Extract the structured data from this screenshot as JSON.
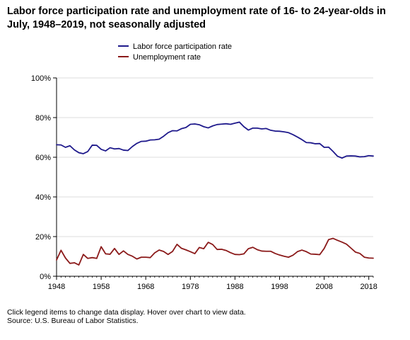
{
  "title": "Labor force participation rate and unemployment rate of 16- to 24-year-olds in July, 1948–2019, not seasonally adjusted",
  "notes": {
    "instruction": "Click legend items to change data display. Hover over chart to view data.",
    "source": "Source: U.S. Bureau of Labor Statistics."
  },
  "colors": {
    "participation": "#1f1a8c",
    "unemployment": "#8b1a1a",
    "axis": "#000000",
    "gridline": "#dcdcdc"
  },
  "chart_data": {
    "type": "line",
    "title": "Labor force participation rate and unemployment rate of 16- to 24-year-olds in July, 1948–2019, not seasonally adjusted",
    "xlabel": "",
    "ylabel": "",
    "xlim": [
      1948,
      2019
    ],
    "ylim": [
      0,
      100
    ],
    "x_ticks": [
      "1948",
      "1958",
      "1968",
      "1978",
      "1988",
      "1998",
      "2008",
      "2018"
    ],
    "y_ticks": [
      "0%",
      "20%",
      "40%",
      "60%",
      "80%",
      "100%"
    ],
    "grid": "horizontal",
    "legend_position": "top",
    "x": [
      1948,
      1949,
      1950,
      1951,
      1952,
      1953,
      1954,
      1955,
      1956,
      1957,
      1958,
      1959,
      1960,
      1961,
      1962,
      1963,
      1964,
      1965,
      1966,
      1967,
      1968,
      1969,
      1970,
      1971,
      1972,
      1973,
      1974,
      1975,
      1976,
      1977,
      1978,
      1979,
      1980,
      1981,
      1982,
      1983,
      1984,
      1985,
      1986,
      1987,
      1988,
      1989,
      1990,
      1991,
      1992,
      1993,
      1994,
      1995,
      1996,
      1997,
      1998,
      1999,
      2000,
      2001,
      2002,
      2003,
      2004,
      2005,
      2006,
      2007,
      2008,
      2009,
      2010,
      2011,
      2012,
      2013,
      2014,
      2015,
      2016,
      2017,
      2018,
      2019
    ],
    "series": [
      {
        "name": "Labor force participation rate",
        "values": [
          66.3,
          66.2,
          65.0,
          65.8,
          63.7,
          62.3,
          61.8,
          62.9,
          66.1,
          66.0,
          64.0,
          63.2,
          64.8,
          64.2,
          64.4,
          63.6,
          63.4,
          65.4,
          67.0,
          68.0,
          68.1,
          68.7,
          68.8,
          69.1,
          70.6,
          72.4,
          73.4,
          73.3,
          74.4,
          75.0,
          76.6,
          76.8,
          76.4,
          75.4,
          74.8,
          75.8,
          76.5,
          76.7,
          76.9,
          76.6,
          77.2,
          77.7,
          75.4,
          73.7,
          74.7,
          74.7,
          74.3,
          74.5,
          73.6,
          73.2,
          73.1,
          72.8,
          72.4,
          71.4,
          70.2,
          68.9,
          67.4,
          67.3,
          66.8,
          66.9,
          65.0,
          65.1,
          62.9,
          60.5,
          59.6,
          60.6,
          60.7,
          60.6,
          60.2,
          60.3,
          60.8,
          60.6
        ]
      },
      {
        "name": "Unemployment rate",
        "values": [
          8.2,
          13.1,
          9.2,
          6.5,
          6.8,
          5.7,
          11.0,
          9.0,
          9.4,
          9.0,
          14.9,
          11.3,
          11.1,
          14.0,
          11.0,
          12.8,
          11.0,
          10.1,
          8.7,
          9.6,
          9.6,
          9.4,
          11.8,
          13.2,
          12.5,
          11.0,
          12.5,
          16.1,
          14.1,
          13.3,
          12.4,
          11.4,
          14.5,
          13.9,
          17.1,
          16.0,
          13.5,
          13.6,
          13.0,
          11.9,
          11.0,
          10.9,
          11.3,
          13.9,
          14.6,
          13.4,
          12.7,
          12.6,
          12.6,
          11.5,
          10.7,
          10.1,
          9.6,
          10.6,
          12.4,
          13.2,
          12.4,
          11.2,
          11.1,
          10.9,
          14.0,
          18.5,
          19.1,
          18.1,
          17.2,
          16.2,
          14.2,
          12.2,
          11.5,
          9.6,
          9.2,
          9.1
        ]
      }
    ]
  }
}
